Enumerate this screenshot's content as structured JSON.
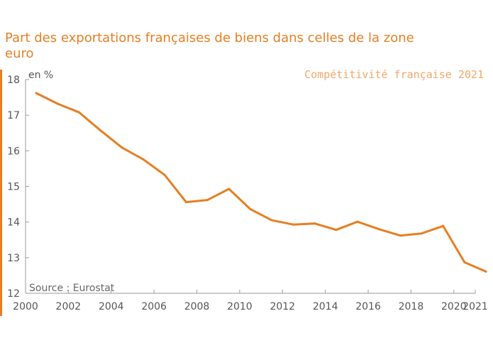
{
  "title": "Part des exportations françaises de biens dans celles de la zone euro",
  "unit": "en %",
  "brand": "Compétitivité française 2021",
  "source": "Source : Eurostat",
  "colors": {
    "line": "#e67e22",
    "axis": "#999999",
    "text": "#555555",
    "brand": "#f0a868"
  },
  "chart_data": {
    "type": "line",
    "x": [
      2000.5,
      2001.5,
      2002.5,
      2003.5,
      2004.5,
      2005.5,
      2006.5,
      2007.5,
      2008.5,
      2009.5,
      2010.5,
      2011.5,
      2012.5,
      2013.5,
      2014.5,
      2015.5,
      2016.5,
      2017.5,
      2018.5,
      2019.5,
      2020.5,
      2021.5
    ],
    "series": [
      {
        "values": [
          17.62,
          17.32,
          17.08,
          16.57,
          16.09,
          15.76,
          15.32,
          14.56,
          14.62,
          14.93,
          14.36,
          14.05,
          13.93,
          13.96,
          13.78,
          14.01,
          13.8,
          13.62,
          13.68,
          13.89,
          12.87,
          12.61
        ]
      }
    ],
    "xlim": [
      2000,
      2021
    ],
    "ylim": [
      12,
      18
    ],
    "xticks": [
      2000,
      2002,
      2004,
      2006,
      2008,
      2010,
      2012,
      2014,
      2016,
      2018,
      2020,
      2021
    ],
    "xtick_labels": [
      "2000",
      "2002",
      "2004",
      "2006",
      "2008",
      "2010",
      "2012",
      "2014",
      "2016",
      "2018",
      "2020",
      "2021"
    ],
    "yticks": [
      12,
      13,
      14,
      15,
      16,
      17,
      18
    ],
    "ytick_labels": [
      "12",
      "13",
      "14",
      "15",
      "16",
      "17",
      "18"
    ],
    "grid": false
  }
}
